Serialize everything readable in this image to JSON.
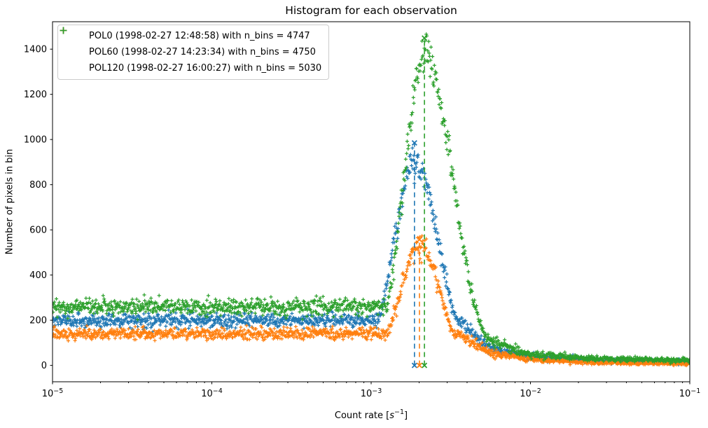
{
  "figure": {
    "background": "#ffffff"
  },
  "chart_data": {
    "type": "scatter",
    "title": "Histogram for each observation",
    "xlabel": "Count rate [s⁻¹]",
    "xlabel_parts": {
      "pre": "Count rate [",
      "variable": "s",
      "exponent": "−1",
      "post": "]"
    },
    "ylabel": "Number of pixels in bin",
    "x_scale": "log",
    "xlim": [
      1e-05,
      0.1
    ],
    "x_tick_exponents": [
      -5,
      -4,
      -3,
      -2,
      -1
    ],
    "ylim": [
      -72.5,
      1521.5
    ],
    "y_ticks": [
      0,
      200,
      400,
      600,
      800,
      1000,
      1200,
      1400
    ],
    "grid": false,
    "legend_position": "upper left",
    "marker": "+",
    "peak_marker": "x",
    "peak_line_style": "dashed",
    "series": [
      {
        "name": "POL0",
        "label": "POL0 (1998-02-27 12:48:58) with n_bins = 4747",
        "n_bins": 4747,
        "color": "#1f77b4",
        "peak_rate": 0.00187,
        "peak_count": 985,
        "amp": 900,
        "mode_log10": -2.7275,
        "sigma_left": 0.13,
        "sigma_right": 0.15,
        "baseline": 5,
        "tail": [
          [
            -2.45,
            200
          ],
          [
            -2.25,
            75
          ],
          [
            -2.0,
            40
          ],
          [
            -1.6,
            22
          ],
          [
            -1.3,
            19
          ],
          [
            -1.0,
            16
          ]
        ]
      },
      {
        "name": "POL60",
        "label": "POL60 (1998-02-27 14:23:34) with n_bins = 4750",
        "n_bins": 4750,
        "color": "#ff7f0e",
        "peak_rate": 0.00201,
        "peak_count": 557,
        "amp": 530,
        "mode_log10": -2.697,
        "sigma_left": 0.122,
        "sigma_right": 0.132,
        "baseline": 4,
        "tail": [
          [
            -2.45,
            140
          ],
          [
            -2.25,
            55
          ],
          [
            -2.0,
            26
          ],
          [
            -1.6,
            12
          ],
          [
            -1.3,
            10
          ],
          [
            -1.0,
            8
          ]
        ]
      },
      {
        "name": "POL120",
        "label": "POL120 (1998-02-27 16:00:27) with n_bins = 5030",
        "n_bins": 5030,
        "color": "#2ca02c",
        "peak_rate": 0.00216,
        "peak_count": 1449,
        "amp": 1380,
        "mode_log10": -2.666,
        "sigma_left": 0.127,
        "sigma_right": 0.175,
        "baseline": 6,
        "tail": [
          [
            -2.45,
            260
          ],
          [
            -2.25,
            105
          ],
          [
            -2.0,
            50
          ],
          [
            -1.6,
            30
          ],
          [
            -1.3,
            26
          ],
          [
            -1.0,
            22
          ]
        ]
      }
    ]
  }
}
